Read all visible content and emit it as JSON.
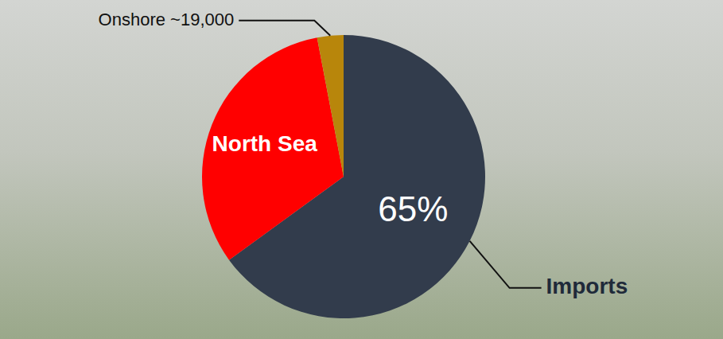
{
  "chart_data": {
    "type": "pie",
    "categories": [
      "Imports",
      "North Sea",
      "Onshore ~19,000"
    ],
    "values": [
      65,
      32,
      3
    ],
    "value_labels": [
      "65%",
      null,
      null
    ],
    "colors": [
      "#323c4c",
      "#ff0000",
      "#b8860b"
    ],
    "data_labels": true
  }
}
